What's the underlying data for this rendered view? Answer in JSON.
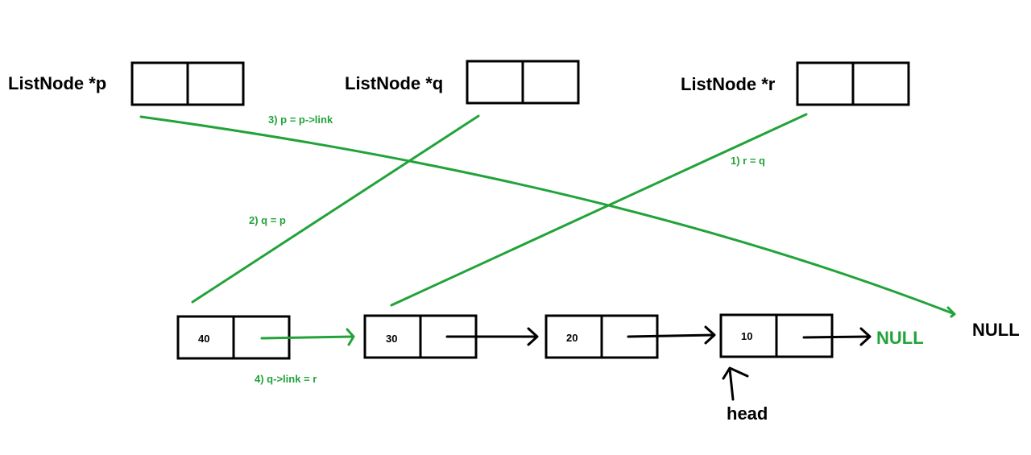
{
  "colors": {
    "green": "#22a33a",
    "black": "#000000"
  },
  "pointers": {
    "p": {
      "label": "ListNode *p"
    },
    "q": {
      "label": "ListNode *q"
    },
    "r": {
      "label": "ListNode *r"
    }
  },
  "nodes": [
    {
      "value": "40"
    },
    {
      "value": "30"
    },
    {
      "value": "20"
    },
    {
      "value": "10"
    }
  ],
  "steps": {
    "step1": "1) r = q",
    "step2": "2) q = p",
    "step3": "3) p = p->link",
    "step4": "4) q->link = r"
  },
  "null_green": "NULL",
  "null_black": "NULL",
  "head": "head"
}
